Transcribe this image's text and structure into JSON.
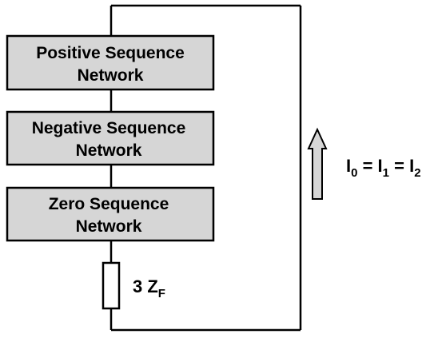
{
  "networks": {
    "positive": {
      "line1": "Positive Sequence",
      "line2": "Network"
    },
    "negative": {
      "line1": "Negative Sequence",
      "line2": "Network"
    },
    "zero": {
      "line1": "Zero Sequence",
      "line2": "Network"
    }
  },
  "impedance": {
    "coef": "3 Z",
    "sub": "F"
  },
  "currents": {
    "i0": "I",
    "i0_sub": "0",
    "eq1": " = ",
    "i1": "I",
    "i1_sub": "1",
    "eq2": " = ",
    "i2": "I",
    "i2_sub": "2"
  },
  "colors": {
    "box_fill": "#d6d6d6",
    "arrow_fill": "#d6d6d6",
    "line": "#000000"
  }
}
